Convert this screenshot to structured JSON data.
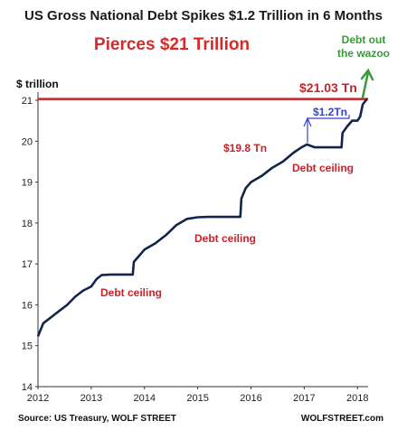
{
  "chart_data": {
    "type": "line",
    "title": "US Gross National Debt Spikes $1.2 Trillion in 6 Months",
    "subtitle": "Pierces $21 Trillion",
    "ylabel": "$ trillion",
    "ylim": [
      14,
      21.5
    ],
    "xlim": [
      2012,
      2018.3
    ],
    "y_ticks": [
      "14",
      "15",
      "16",
      "17",
      "18",
      "19",
      "20",
      "21"
    ],
    "x_ticks": [
      "2012",
      "2013",
      "2014",
      "2015",
      "2016",
      "2017",
      "2018"
    ],
    "series": [
      {
        "x": [
          2012.0,
          2012.1,
          2012.25,
          2012.4,
          2012.55,
          2012.7,
          2012.85,
          2013.0,
          2013.1,
          2013.2,
          2013.38,
          2013.78,
          2013.8,
          2013.9,
          2014.0,
          2014.2,
          2014.4,
          2014.6,
          2014.8,
          2015.0,
          2015.2,
          2015.8,
          2015.82,
          2015.9,
          2016.0,
          2016.2,
          2016.4,
          2016.6,
          2016.8,
          2016.95,
          2017.05,
          2017.2,
          2017.7,
          2017.72,
          2017.8,
          2017.9,
          2018.0,
          2018.05,
          2018.1,
          2018.18
        ],
        "values": [
          15.23,
          15.55,
          15.7,
          15.85,
          16.0,
          16.2,
          16.35,
          16.45,
          16.63,
          16.73,
          16.74,
          16.74,
          17.05,
          17.2,
          17.35,
          17.5,
          17.7,
          17.95,
          18.1,
          18.14,
          18.15,
          18.15,
          18.6,
          18.85,
          19.0,
          19.15,
          19.35,
          19.5,
          19.72,
          19.85,
          19.92,
          19.85,
          19.85,
          20.2,
          20.35,
          20.5,
          20.5,
          20.6,
          20.9,
          21.03
        ]
      }
    ],
    "reference_line": {
      "value": 21.03,
      "color": "#c8232b"
    },
    "annotations": {
      "value_label": "$21.03 Tn",
      "wazoo": "Debt out the wazoo",
      "wazoo_line1": "Debt out",
      "wazoo_line2": "the wazoo",
      "spike": "$1.2Tn",
      "prev_value": "$19.8 Tn",
      "debt_ceiling": [
        "Debt ceiling",
        "Debt ceiling",
        "Debt ceiling"
      ]
    },
    "source": "Source: US Treasury, WOLF STREET",
    "brand": "WOLFSTREET.com",
    "grid": false
  },
  "colors": {
    "line": "#12254a",
    "accent": "#c8232b",
    "blue": "#3344cc",
    "green": "#3a9a3a"
  }
}
